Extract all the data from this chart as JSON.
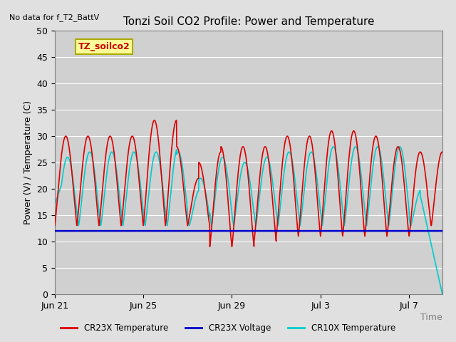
{
  "title": "Tonzi Soil CO2 Profile: Power and Temperature",
  "subtitle": "No data for f_T2_BattV",
  "ylabel": "Power (V) / Temperature (C)",
  "xlabel": "Time",
  "ylim": [
    0,
    50
  ],
  "xlim_days": [
    0,
    17.5
  ],
  "fig_bg_color": "#e0e0e0",
  "plot_bg_color": "#d0d0d0",
  "legend_label": "TZ_soilco2",
  "legend_box_color": "#ffff99",
  "legend_box_edge": "#aaaa00",
  "x_tick_labels": [
    "Jun 21",
    "Jun 25",
    "Jun 29",
    "Jul 3",
    "Jul 7"
  ],
  "x_tick_positions": [
    0,
    4,
    8,
    12,
    16
  ],
  "y_ticks": [
    0,
    5,
    10,
    15,
    20,
    25,
    30,
    35,
    40,
    45,
    50
  ],
  "cr23x_color": "#dd0000",
  "cr10x_color": "#00cccc",
  "voltage_color": "#0000cc",
  "voltage_value": 12.0,
  "line_widths": {
    "cr23x": 1.2,
    "cr10x": 1.2,
    "voltage": 1.8
  }
}
